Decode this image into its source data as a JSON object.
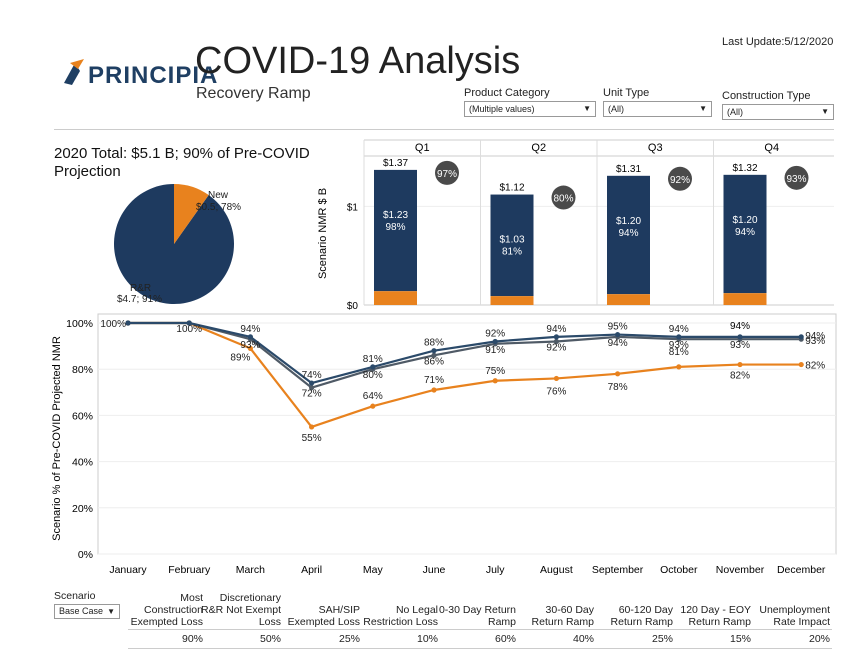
{
  "header": {
    "logo_text": "PRINCIPIA",
    "title": "COVID-19 Analysis",
    "subtitle": "Recovery Ramp",
    "last_update": "Last Update:5/12/2020"
  },
  "filters": {
    "product_category": {
      "label": "Product Category",
      "value": "(Multiple values)"
    },
    "unit_type": {
      "label": "Unit Type",
      "value": "(All)"
    },
    "construction_type": {
      "label": "Construction Type",
      "value": "(All)"
    }
  },
  "pie": {
    "title": "2020 Total: $5.1 B; 90% of Pre-COVID Projection",
    "new_label": "New",
    "new_value": "$0.5; 78%",
    "rr_label": "R&R",
    "rr_value": "$4.7; 91%",
    "colors": {
      "rr": "#1e3a5f",
      "new": "#e8821e"
    }
  },
  "chart_data": [
    {
      "type": "bar",
      "categories": [
        "Q1",
        "Q2",
        "Q3",
        "Q4"
      ],
      "ylabel": "Scenario NMR $ B",
      "yticks": [
        "$0",
        "$1"
      ],
      "ylim": [
        0,
        1.45
      ],
      "series": [
        {
          "values": [
            1.23,
            1.03,
            1.2,
            1.2
          ],
          "color": "#1e3a5f"
        },
        {
          "values": [
            0.14,
            0.09,
            0.11,
            0.12
          ],
          "color": "#e8821e"
        }
      ],
      "total_labels": [
        "$1.37",
        "$1.12",
        "$1.31",
        "$1.32"
      ],
      "inner_labels": [
        "$1.23",
        "$1.03",
        "$1.20",
        "$1.20"
      ],
      "inner_pcts": [
        "98%",
        "81%",
        "94%",
        "94%"
      ],
      "badges": [
        "97%",
        "80%",
        "92%",
        "93%"
      ]
    },
    {
      "type": "line",
      "ylabel": "Scenario % of Pre-COVID Projected NMR",
      "categories": [
        "January",
        "February",
        "March",
        "April",
        "May",
        "June",
        "July",
        "August",
        "September",
        "October",
        "November",
        "December"
      ],
      "yticks": [
        "0%",
        "20%",
        "40%",
        "60%",
        "80%",
        "100%"
      ],
      "ylim": [
        0,
        100
      ],
      "series": [
        {
          "color": "#2b4a6a",
          "values": [
            100,
            100,
            94,
            74,
            81,
            88,
            92,
            94,
            95,
            94,
            94,
            94
          ],
          "labels": [
            "100%",
            "",
            "94%",
            "74%",
            "81%",
            "88%",
            "92%",
            "94%",
            "95%",
            "94%",
            "",
            "94%"
          ]
        },
        {
          "color": "#4f5a66",
          "values": [
            100,
            100,
            93,
            72,
            80,
            86,
            91,
            92,
            94,
            93,
            93,
            93
          ],
          "labels": [
            "",
            "100%",
            "93%",
            "72%",
            "80%",
            "86%",
            "91%",
            "92%",
            "94%",
            "93%",
            "93%",
            "93%"
          ]
        },
        {
          "color": "#e8821e",
          "values": [
            100,
            100,
            89,
            55,
            64,
            71,
            75,
            76,
            78,
            81,
            82,
            82
          ],
          "labels": [
            "",
            "",
            "89%",
            "55%",
            "64%",
            "71%",
            "75%",
            "76%",
            "78%",
            "81%",
            "82%",
            "82%"
          ]
        }
      ],
      "annotations": [
        {
          "x": "November",
          "text": "94%"
        }
      ]
    }
  ],
  "scenario": {
    "label": "Scenario",
    "value": "Base Case"
  },
  "assumptions": {
    "headers": [
      "Most Construction Exempted Loss",
      "Discretionary R&R Not Exempt Loss",
      "SAH/SIP Exempted Loss",
      "No Legal Restriction Loss",
      "0-30 Day Return Ramp",
      "30-60 Day Return Ramp",
      "60-120 Day Return Ramp",
      "120 Day - EOY Return Ramp",
      "Unemployment Rate Impact"
    ],
    "values": [
      "90%",
      "50%",
      "25%",
      "10%",
      "60%",
      "40%",
      "25%",
      "15%",
      "20%"
    ]
  }
}
